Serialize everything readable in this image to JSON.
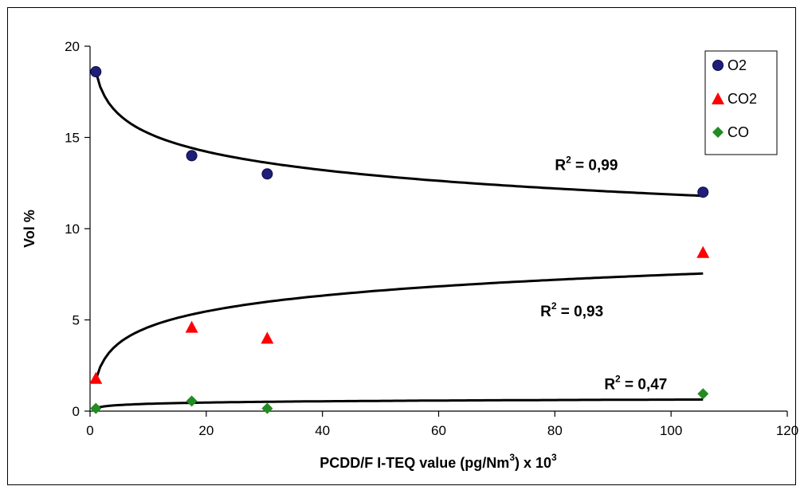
{
  "chart_data": {
    "type": "scatter",
    "xlabel_main": "PCDD/F I-TEQ value (pg/Nm",
    "xlabel_sup1": "3",
    "xlabel_mid": ") x 10",
    "xlabel_sup2": "3",
    "ylabel": "Vol %",
    "xlim": [
      0,
      120
    ],
    "ylim": [
      0,
      20
    ],
    "xticks": [
      "0",
      "20",
      "40",
      "60",
      "80",
      "100",
      "120"
    ],
    "yticks": [
      "0",
      "5",
      "10",
      "15",
      "20"
    ],
    "legend_position": "top-right",
    "series": [
      {
        "name": "O2",
        "marker": "circle",
        "color": "#1f1f7a",
        "x": [
          1,
          17.5,
          30.5,
          105.5
        ],
        "y": [
          18.6,
          14.0,
          13.0,
          12.0
        ],
        "fit": {
          "kind": "log",
          "a": 18.6,
          "b": -1.46
        },
        "r2_prefix": "R",
        "r2_sup": "2",
        "r2_value": " = 0,99",
        "r2_anchor": [
          80,
          13.2
        ]
      },
      {
        "name": "CO2",
        "marker": "triangle",
        "color": "#ff0000",
        "x": [
          1,
          17.5,
          30.5,
          105.5
        ],
        "y": [
          1.8,
          4.6,
          4.0,
          8.7
        ],
        "fit": {
          "kind": "log",
          "a": 1.72,
          "b": 1.25
        },
        "r2_prefix": "R",
        "r2_sup": "2",
        "r2_value": " = 0,93",
        "r2_anchor": [
          77.5,
          5.2
        ]
      },
      {
        "name": "CO",
        "marker": "diamond",
        "color": "#228b22",
        "x": [
          1,
          17.5,
          30.5,
          105.5
        ],
        "y": [
          0.15,
          0.55,
          0.15,
          0.95
        ],
        "fit": {
          "kind": "log",
          "a": 0.17,
          "b": 0.1
        },
        "r2_prefix": "R",
        "r2_sup": "2",
        "r2_value": " = 0,47",
        "r2_anchor": [
          88.5,
          1.2
        ]
      }
    ]
  }
}
